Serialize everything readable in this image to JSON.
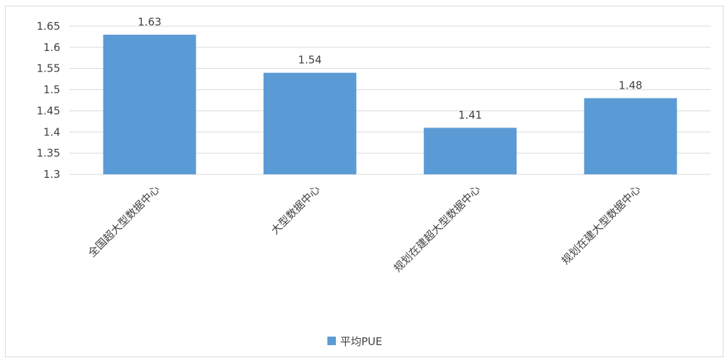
{
  "chart_data": {
    "type": "bar",
    "categories": [
      "全国超大型数据中心",
      "大型数据中心",
      "规划在建超大型数据中心",
      "规划在建大型数据中心"
    ],
    "series": [
      {
        "name": "平均PUE",
        "values": [
          1.63,
          1.54,
          1.41,
          1.48
        ],
        "color": "#5b9bd5"
      }
    ],
    "data_labels": [
      "1.63",
      "1.54",
      "1.41",
      "1.48"
    ],
    "y_ticks": [
      "1.3",
      "1.35",
      "1.4",
      "1.45",
      "1.5",
      "1.55",
      "1.6",
      "1.65"
    ],
    "ylim": [
      1.3,
      1.65
    ],
    "title": "",
    "xlabel": "",
    "ylabel": "",
    "grid": true,
    "legend_position": "bottom",
    "colors": {
      "bar": "#5b9bd5",
      "grid": "#d9d9d9",
      "text": "#404040"
    }
  }
}
